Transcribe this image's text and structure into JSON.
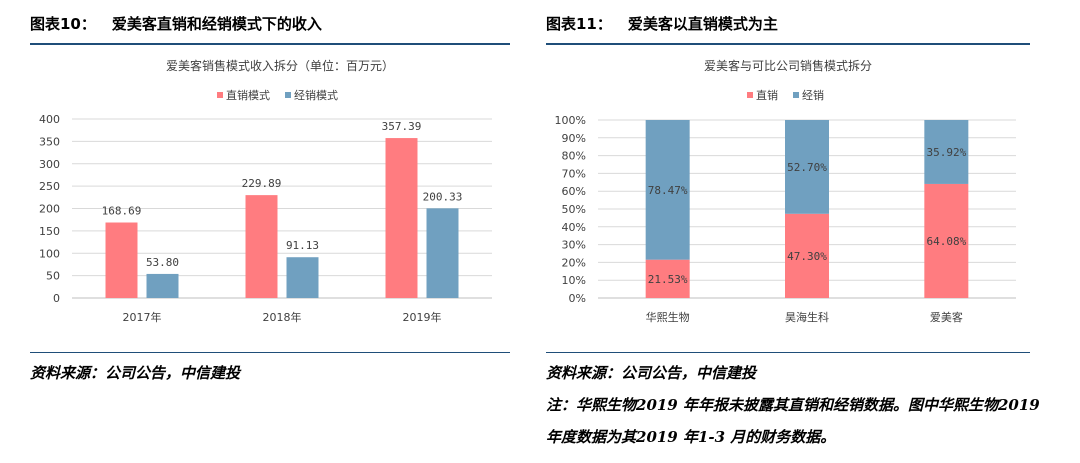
{
  "left": {
    "figure_number": "图表10：",
    "figure_title": "爱美客直销和经销模式下的收入",
    "source": "资料来源：公司公告，中信建投"
  },
  "right": {
    "figure_number": "图表11：",
    "figure_title": "爱美客以直销模式为主",
    "source": "资料来源：公司公告，中信建投",
    "note_line1": "注：华熙生物2019 年年报未披露其直销和经销数据。图中华熙生物2019",
    "note_line2": "年度数据为其2019 年1-3 月的财务数据。"
  },
  "colors": {
    "direct": "#ff7c80",
    "distribution": "#70a0c0",
    "grid": "#d9d9d9",
    "axis_text": "#404040",
    "rule": "#1f4e79"
  },
  "chart_data": [
    {
      "type": "bar",
      "title": "爱美客销售模式收入拆分（单位：百万元）",
      "categories": [
        "2017年",
        "2018年",
        "2019年"
      ],
      "series": [
        {
          "name": "直销模式",
          "values": [
            168.69,
            229.89,
            357.39
          ],
          "labels": [
            "168.69",
            "229.89",
            "357.39"
          ]
        },
        {
          "name": "经销模式",
          "values": [
            53.8,
            91.13,
            200.33
          ],
          "labels": [
            "53.80",
            "91.13",
            "200.33"
          ]
        }
      ],
      "ylim": [
        0,
        400
      ],
      "yticks": [
        "0",
        "50",
        "100",
        "150",
        "200",
        "250",
        "300",
        "350",
        "400"
      ],
      "legend": "top-center",
      "grid": true
    },
    {
      "type": "bar",
      "stacked": true,
      "title": "爱美客与可比公司销售模式拆分",
      "categories": [
        "华熙生物",
        "昊海生科",
        "爱美客"
      ],
      "series": [
        {
          "name": "直销",
          "values": [
            21.53,
            47.3,
            64.08
          ],
          "labels": [
            "21.53%",
            "47.30%",
            "64.08%"
          ]
        },
        {
          "name": "经销",
          "values": [
            78.47,
            52.7,
            35.92
          ],
          "labels": [
            "78.47%",
            "52.70%",
            "35.92%"
          ]
        }
      ],
      "ylim": [
        0,
        100
      ],
      "yticks": [
        "0%",
        "10%",
        "20%",
        "30%",
        "40%",
        "50%",
        "60%",
        "70%",
        "80%",
        "90%",
        "100%"
      ],
      "legend": "top-center",
      "grid": true
    }
  ]
}
